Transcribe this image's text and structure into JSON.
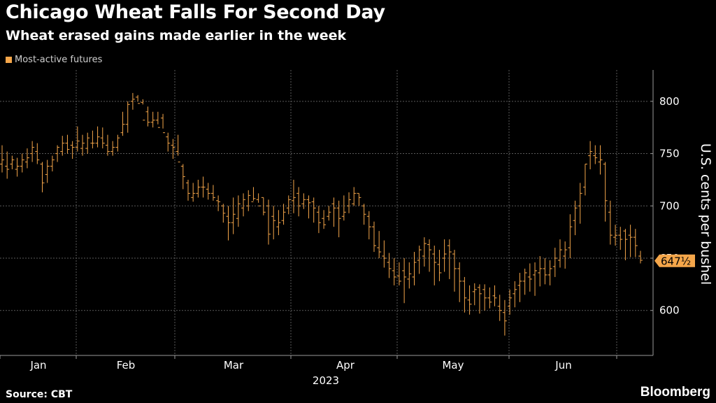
{
  "header": {
    "title": "Chicago Wheat Falls For Second Day",
    "subtitle": "Wheat erased gains made earlier in the week"
  },
  "footer": {
    "source": "Source: CBT",
    "brand": "Bloomberg"
  },
  "colors": {
    "series": "#f5a64a",
    "background": "#000000",
    "grid": "#5a5a5a",
    "axis": "#9a9a9a"
  },
  "chart_data": {
    "type": "ohlc",
    "title": "Chicago Wheat Falls For Second Day",
    "subtitle": "Wheat erased gains made earlier in the week",
    "legend": {
      "entries": [
        "Most-active futures"
      ],
      "placement": "top-left"
    },
    "ylabel": "U.S. cents per bushel",
    "y_axis_side": "right",
    "ylim": [
      557,
      830
    ],
    "yticks": [
      600,
      650,
      700,
      750,
      800
    ],
    "grid": true,
    "x_year_label": "2023",
    "x_month_labels": [
      "Jan",
      "Feb",
      "Mar",
      "Apr",
      "May",
      "Jun"
    ],
    "last_value_label": "647½",
    "last_value": 647.5,
    "series": [
      {
        "name": "Most-active futures",
        "day_spacing_days": 1,
        "start_label": "Jan",
        "lows": [
          732,
          726,
          735,
          728,
          732,
          736,
          742,
          740,
          713,
          722,
          733,
          742,
          748,
          750,
          745,
          752,
          748,
          750,
          755,
          756,
          755,
          748,
          748,
          752,
          767,
          770,
          792,
          800,
          797,
          776,
          775,
          778,
          774,
          752,
          745,
          748,
          716,
          705,
          704,
          708,
          708,
          706,
          705,
          695,
          684,
          667,
          673,
          680,
          690,
          695,
          705,
          703,
          691,
          663,
          668,
          672,
          682,
          692,
          693,
          690,
          697,
          688,
          684,
          674,
          678,
          686,
          680,
          670,
          686,
          693,
          700,
          700,
          682,
          668,
          656,
          650,
          641,
          631,
          624,
          624,
          607,
          621,
          624,
          635,
          642,
          637,
          624,
          628,
          637,
          630,
          618,
          608,
          598,
          596,
          605,
          597,
          600,
          602,
          604,
          590,
          576,
          596,
          603,
          608,
          615,
          618,
          614,
          623,
          625,
          624,
          632,
          641,
          640,
          650,
          672,
          683,
          710,
          735,
          740,
          730,
          685,
          663,
          662,
          658,
          648,
          651,
          651,
          645
        ],
        "highs": [
          758,
          752,
          748,
          746,
          750,
          755,
          762,
          760,
          742,
          744,
          748,
          758,
          767,
          768,
          762,
          776,
          768,
          770,
          772,
          776,
          775,
          768,
          762,
          768,
          790,
          800,
          808,
          806,
          802,
          795,
          790,
          790,
          788,
          770,
          764,
          768,
          740,
          725,
          722,
          725,
          728,
          722,
          720,
          710,
          702,
          700,
          708,
          710,
          712,
          715,
          718,
          712,
          708,
          706,
          700,
          696,
          702,
          710,
          725,
          718,
          712,
          710,
          708,
          700,
          696,
          700,
          708,
          705,
          710,
          713,
          718,
          712,
          702,
          695,
          685,
          676,
          667,
          655,
          650,
          646,
          650,
          646,
          656,
          662,
          670,
          668,
          662,
          658,
          668,
          668,
          658,
          646,
          632,
          624,
          626,
          625,
          625,
          622,
          624,
          615,
          610,
          620,
          628,
          636,
          640,
          645,
          646,
          652,
          650,
          648,
          660,
          668,
          666,
          692,
          705,
          722,
          740,
          762,
          758,
          758,
          742,
          705,
          682,
          680,
          678,
          682,
          678,
          657
        ],
        "opens": [
          740,
          738,
          740,
          735,
          738,
          742,
          750,
          752,
          740,
          730,
          738,
          750,
          752,
          760,
          758,
          756,
          755,
          755,
          760,
          760,
          765,
          758,
          752,
          756,
          770,
          778,
          800,
          804,
          799,
          790,
          780,
          782,
          784,
          766,
          758,
          752,
          738,
          722,
          708,
          712,
          718,
          716,
          712,
          705,
          700,
          690,
          684,
          688,
          698,
          700,
          704,
          706,
          708,
          700,
          690,
          680,
          686,
          698,
          705,
          712,
          702,
          706,
          704,
          694,
          688,
          690,
          702,
          698,
          690,
          700,
          702,
          712,
          700,
          690,
          680,
          660,
          652,
          646,
          638,
          633,
          638,
          630,
          632,
          648,
          652,
          663,
          654,
          644,
          650,
          662,
          654,
          640,
          628,
          610,
          618,
          622,
          620,
          612,
          614,
          604,
          598,
          604,
          616,
          624,
          628,
          632,
          634,
          636,
          640,
          634,
          642,
          648,
          652,
          660,
          686,
          700,
          718,
          748,
          748,
          742,
          740,
          694,
          670,
          672,
          676,
          672,
          670,
          652
        ],
        "closes": [
          744,
          735,
          744,
          738,
          744,
          746,
          756,
          744,
          722,
          738,
          744,
          756,
          760,
          754,
          756,
          762,
          760,
          765,
          760,
          766,
          760,
          752,
          756,
          765,
          778,
          797,
          802,
          798,
          782,
          780,
          782,
          775,
          770,
          760,
          756,
          742,
          728,
          712,
          712,
          718,
          718,
          712,
          708,
          704,
          693,
          684,
          692,
          702,
          706,
          710,
          707,
          700,
          694,
          673,
          686,
          684,
          694,
          706,
          708,
          700,
          706,
          703,
          698,
          684,
          682,
          694,
          698,
          688,
          694,
          706,
          712,
          708,
          692,
          680,
          662,
          656,
          650,
          640,
          632,
          628,
          632,
          635,
          646,
          658,
          664,
          658,
          646,
          636,
          654,
          656,
          640,
          628,
          612,
          606,
          620,
          616,
          612,
          608,
          612,
          600,
          590,
          612,
          620,
          628,
          636,
          630,
          638,
          640,
          634,
          640,
          650,
          658,
          658,
          680,
          698,
          712,
          740,
          752,
          746,
          744,
          705,
          672,
          672,
          668,
          668,
          670,
          662,
          648
        ]
      }
    ]
  }
}
